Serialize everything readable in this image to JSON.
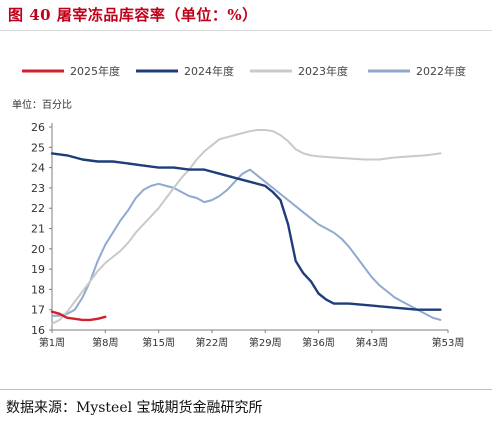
{
  "title": "图 40  屠宰冻品库容率（单位：%）",
  "unit_label": "单位：百分比",
  "source": "数据来源：Mysteel 宝城期货金融研究所",
  "chart_data": {
    "type": "line",
    "title": "屠宰冻品库容率（单位：%）",
    "xlabel": "",
    "ylabel": "单位：百分比",
    "xlim": [
      1,
      53
    ],
    "ylim": [
      16,
      26
    ],
    "yticks": [
      16,
      17,
      18,
      19,
      20,
      21,
      22,
      23,
      24,
      25,
      26
    ],
    "xticks": [
      1,
      8,
      15,
      22,
      29,
      36,
      43,
      53
    ],
    "xtick_labels": [
      "第1周",
      "第8周",
      "第15周",
      "第22周",
      "第29周",
      "第36周",
      "第43周",
      "第53周"
    ],
    "grid": false,
    "legend_position": "top",
    "series": [
      {
        "name": "2025年度",
        "color": "#d0212e",
        "x": [
          1,
          2,
          3,
          4,
          5,
          6,
          7,
          8
        ],
        "y": [
          16.9,
          16.8,
          16.6,
          16.55,
          16.5,
          16.5,
          16.55,
          16.65
        ]
      },
      {
        "name": "2024年度",
        "color": "#1f3d7a",
        "x": [
          1,
          3,
          5,
          7,
          9,
          11,
          13,
          15,
          17,
          19,
          21,
          23,
          25,
          27,
          29,
          30,
          31,
          32,
          33,
          34,
          35,
          36,
          37,
          38,
          40,
          43,
          46,
          49,
          52
        ],
        "y": [
          24.7,
          24.6,
          24.4,
          24.3,
          24.3,
          24.2,
          24.1,
          24.0,
          24.0,
          23.9,
          23.9,
          23.7,
          23.5,
          23.3,
          23.1,
          22.8,
          22.4,
          21.2,
          19.4,
          18.8,
          18.4,
          17.8,
          17.5,
          17.3,
          17.3,
          17.2,
          17.1,
          17.0,
          17.0
        ]
      },
      {
        "name": "2023年度",
        "color": "#c9c9c9",
        "x": [
          1,
          2,
          3,
          4,
          5,
          6,
          7,
          8,
          9,
          10,
          11,
          12,
          13,
          14,
          15,
          16,
          17,
          18,
          19,
          20,
          21,
          22,
          23,
          24,
          25,
          26,
          27,
          28,
          29,
          30,
          31,
          32,
          33,
          34,
          35,
          36,
          38,
          40,
          42,
          44,
          46,
          48,
          50,
          52
        ],
        "y": [
          16.3,
          16.5,
          16.9,
          17.4,
          17.9,
          18.4,
          18.9,
          19.3,
          19.6,
          19.9,
          20.3,
          20.8,
          21.2,
          21.6,
          22.0,
          22.5,
          23.0,
          23.5,
          23.9,
          24.4,
          24.8,
          25.1,
          25.4,
          25.5,
          25.6,
          25.7,
          25.8,
          25.85,
          25.85,
          25.8,
          25.6,
          25.3,
          24.9,
          24.7,
          24.6,
          24.55,
          24.5,
          24.45,
          24.4,
          24.4,
          24.5,
          24.55,
          24.6,
          24.7
        ]
      },
      {
        "name": "2022年度",
        "color": "#8fa9d1",
        "x": [
          1,
          2,
          3,
          4,
          5,
          6,
          7,
          8,
          9,
          10,
          11,
          12,
          13,
          14,
          15,
          16,
          17,
          18,
          19,
          20,
          21,
          22,
          23,
          24,
          25,
          26,
          27,
          28,
          29,
          30,
          31,
          32,
          33,
          34,
          35,
          36,
          37,
          38,
          39,
          40,
          41,
          42,
          43,
          44,
          45,
          46,
          47,
          48,
          49,
          50,
          51,
          52
        ],
        "y": [
          16.7,
          16.7,
          16.8,
          17.0,
          17.6,
          18.4,
          19.4,
          20.2,
          20.8,
          21.4,
          21.9,
          22.5,
          22.9,
          23.1,
          23.2,
          23.1,
          23.0,
          22.8,
          22.6,
          22.5,
          22.3,
          22.4,
          22.6,
          22.9,
          23.3,
          23.7,
          23.9,
          23.6,
          23.3,
          23.0,
          22.7,
          22.4,
          22.1,
          21.8,
          21.5,
          21.2,
          21.0,
          20.8,
          20.5,
          20.1,
          19.6,
          19.1,
          18.6,
          18.2,
          17.9,
          17.6,
          17.4,
          17.2,
          17.0,
          16.8,
          16.6,
          16.5
        ]
      }
    ]
  }
}
